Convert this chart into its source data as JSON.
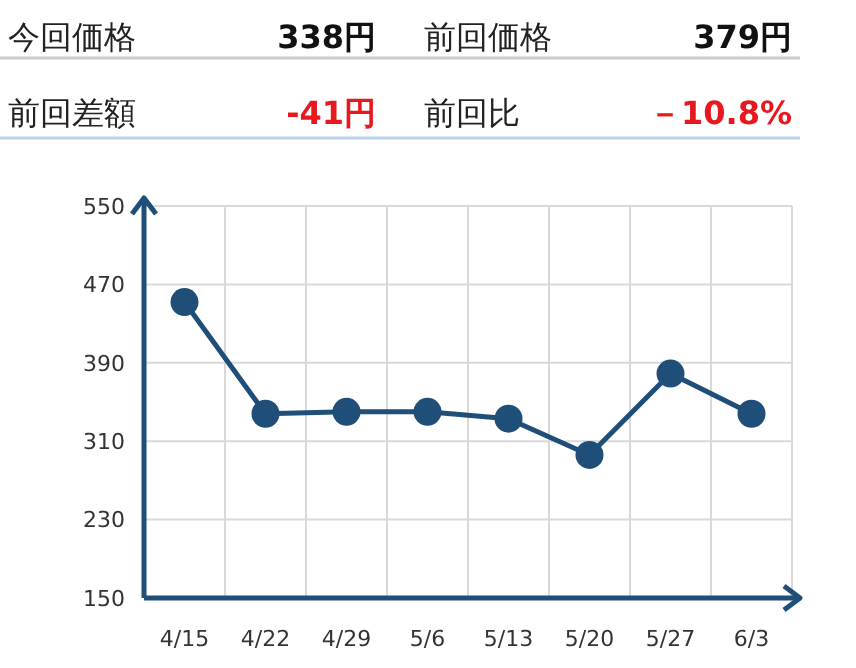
{
  "chart_data": [
    {
      "type": "other",
      "annotations": [
        "今回価格",
        "338円",
        "前回価格",
        "379円",
        "前回差額",
        "-41円",
        "前回比",
        "－10.8%"
      ]
    },
    {
      "type": "line",
      "categories": [
        "4/15",
        "4/22",
        "4/29",
        "5/6",
        "5/13",
        "5/20",
        "5/27",
        "6/3"
      ],
      "series": [
        {
          "color": "#1f4e79",
          "values": [
            452,
            338,
            340,
            340,
            333,
            296,
            379,
            338
          ]
        }
      ],
      "ylim": [
        150,
        550
      ],
      "yticks": [
        150,
        230,
        310,
        390,
        470,
        550
      ],
      "grid": true,
      "marker": "circle",
      "line_style": "solid"
    }
  ]
}
